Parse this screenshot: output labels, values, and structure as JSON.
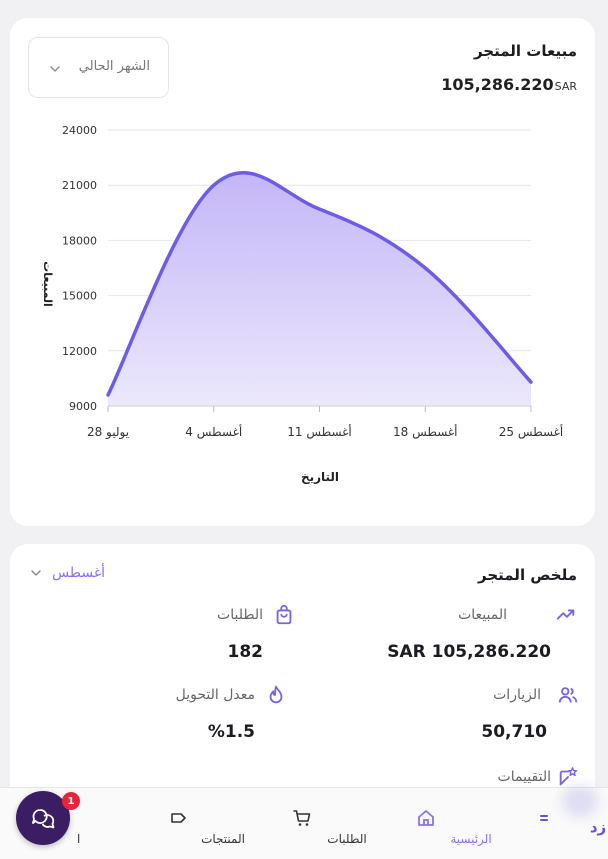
{
  "sales_card": {
    "title": "مبيعات المتجر",
    "total_value": "105,286.220",
    "currency": "SAR",
    "period_dropdown": "الشهر الحالي"
  },
  "chart_data": {
    "type": "area",
    "title": "",
    "xlabel": "التاريخ",
    "ylabel": "المبيعات",
    "x": [
      "28 يوليو",
      "4 أغسطس",
      "11 أغسطس",
      "18 أغسطس",
      "25 أغسطس"
    ],
    "y_ticks": [
      "24000",
      "21000",
      "18000",
      "15000",
      "12000",
      "9000"
    ],
    "ylim": [
      9000,
      24000
    ],
    "series": [
      {
        "values": [
          9600,
          21000,
          19700,
          16500,
          10300
        ]
      }
    ],
    "colors": {
      "line": "#6c5ce7",
      "fill_top": "#c4b6f7",
      "fill_bottom": "#ece8fc"
    },
    "grid": true
  },
  "summary_card": {
    "title": "ملخص المتجر",
    "month_dropdown": "أغسطس",
    "metrics": {
      "sales": {
        "label": "المبيعات",
        "value": "SAR 105,286.220",
        "icon": "trending-up-icon"
      },
      "orders": {
        "label": "الطلبات",
        "value": "182",
        "icon": "shopping-bag-icon"
      },
      "visits": {
        "label": "الزيارات",
        "value": "50,710",
        "icon": "users-icon"
      },
      "conversion": {
        "label": "معدل التحويل",
        "value": "%1.5",
        "icon": "flame-icon"
      },
      "reviews": {
        "label": "التقييمات",
        "icon": "star-badge-icon"
      }
    }
  },
  "bottom_nav": {
    "home": "الرئيسية",
    "orders": "الطلبات",
    "products": "المنتجات",
    "more_partial": "ا",
    "logo": "زد"
  },
  "chat_badge": "1",
  "accent": "#8a72e6"
}
